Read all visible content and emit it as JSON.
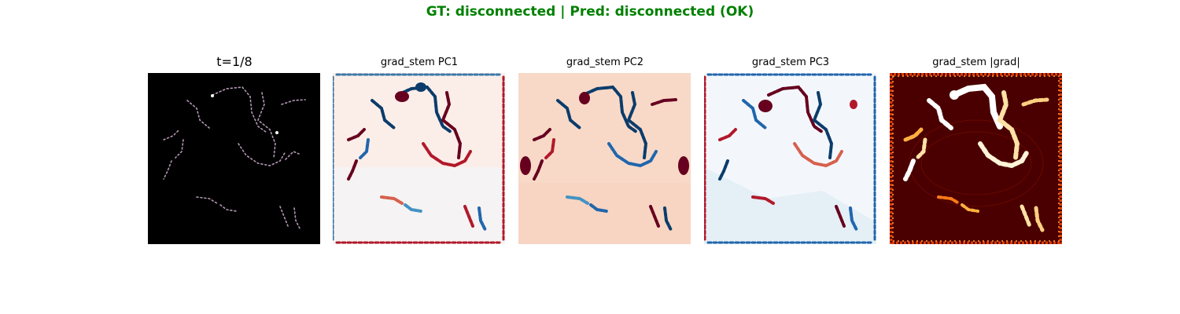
{
  "suptitle": "GT: disconnected | Pred: disconnected (OK)",
  "suptitle_color": "#008000",
  "panels": [
    {
      "title": "t=1/8",
      "kind": "input-image"
    },
    {
      "title": "grad_stem PC1",
      "kind": "diverging-map",
      "colormap": "RdBu_r"
    },
    {
      "title": "grad_stem PC2",
      "kind": "diverging-map",
      "colormap": "RdBu_r"
    },
    {
      "title": "grad_stem PC3",
      "kind": "diverging-map",
      "colormap": "RdBu_r"
    },
    {
      "title": "grad_stem |grad|",
      "kind": "magnitude-map",
      "colormap": "gist_heat"
    }
  ]
}
